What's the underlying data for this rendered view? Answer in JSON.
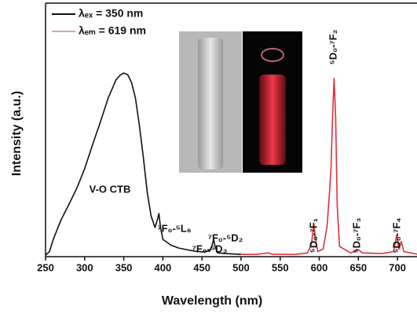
{
  "chart_data": {
    "type": "line",
    "xlabel": "Wavelength (nm)",
    "ylabel": "Intensity (a.u.)",
    "xlim": [
      250,
      725
    ],
    "xticks": [
      250,
      300,
      350,
      400,
      450,
      500,
      550,
      600,
      650,
      700
    ],
    "ylim": [
      0,
      100
    ],
    "series": [
      {
        "name": "λₑₓ = 350 nm",
        "color": "#111111",
        "x": [
          250,
          255,
          260,
          270,
          280,
          290,
          300,
          310,
          320,
          330,
          340,
          345,
          350,
          355,
          360,
          365,
          370,
          375,
          380,
          385,
          390,
          393,
          395,
          397,
          400,
          410,
          420,
          430,
          440,
          450,
          460,
          463,
          465,
          467,
          470,
          480,
          500
        ],
        "values": [
          0.6,
          2,
          7,
          14.6,
          20.7,
          27,
          34.7,
          44,
          53,
          62.5,
          69.7,
          71.5,
          72.4,
          71.8,
          68.7,
          62.5,
          51.7,
          39.3,
          25.4,
          16,
          11.5,
          14.6,
          17,
          11.5,
          6.8,
          4.6,
          3.4,
          2.8,
          2.2,
          1.9,
          2.2,
          4.6,
          6.8,
          3.7,
          1.5,
          1.2,
          0.9
        ]
      },
      {
        "name": "λₑₘ = 619 nm",
        "color": "#e0303a",
        "x": [
          500,
          520,
          535,
          540,
          570,
          585,
          590,
          593,
          595,
          598,
          605,
          610,
          613,
          615,
          617,
          619,
          621,
          623,
          626,
          640,
          650,
          655,
          680,
          695,
          699,
          702,
          705,
          708,
          725
        ],
        "values": [
          0.9,
          0.9,
          1.5,
          0.9,
          0.9,
          1.5,
          5,
          13,
          8,
          2,
          3,
          12,
          25,
          34.7,
          55,
          70.3,
          55,
          20,
          4,
          1.5,
          2.8,
          1.5,
          1.2,
          2,
          8.4,
          3,
          6,
          2,
          1
        ]
      }
    ],
    "annotations": [
      "V-O CTB",
      "⁷F₀-⁵L₆",
      "⁷F₀-⁵D₃",
      "⁷F₀-⁵D₂",
      "⁵D₀-⁷F₁",
      "⁵D₀-⁷F₂",
      "⁵D₀-⁷F₃",
      "⁵D₀-⁷F₄"
    ]
  }
}
